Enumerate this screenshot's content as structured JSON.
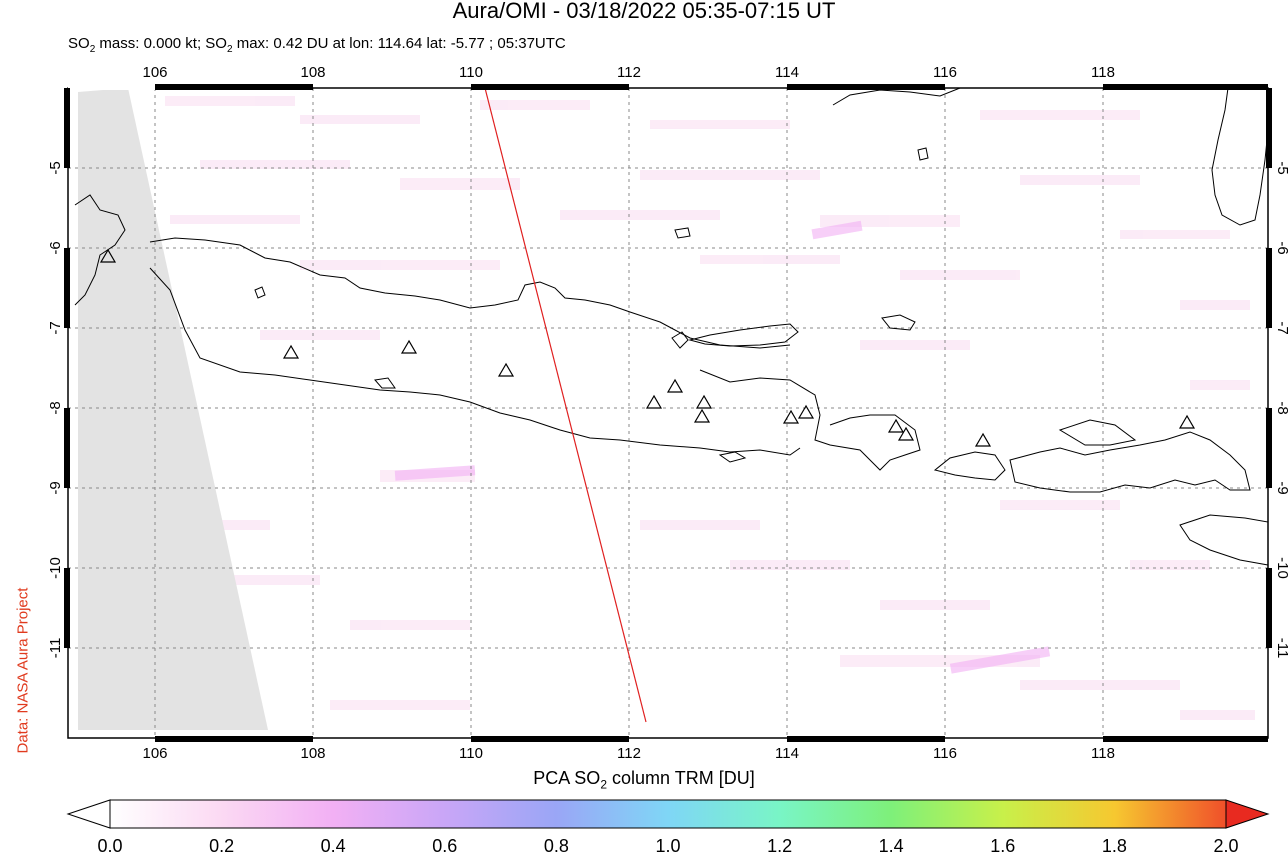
{
  "title": "Aura/OMI - 03/18/2022 05:35-07:15 UT",
  "subtitle": {
    "p1": "SO",
    "p1sub": "2",
    "p2": " mass: 0.000 kt; SO",
    "p2sub": "2",
    "p3": " max: 0.42 DU at lon: 114.64 lat: -5.77 ; 05:37UTC"
  },
  "credit": "Data: NASA Aura Project",
  "map": {
    "lon_ticks": [
      "106",
      "108",
      "110",
      "112",
      "114",
      "116",
      "118"
    ],
    "lat_ticks": [
      "-5",
      "-6",
      "-7",
      "-8",
      "-9",
      "-10",
      "-11"
    ],
    "lon_range": [
      104.9,
      120.0
    ],
    "lat_range": [
      -12.0,
      -4.0
    ],
    "volcano_marker": "triangle-outline",
    "orbit_track_color": "#e02020",
    "no_data_color": "#e3e3e3"
  },
  "colorbar": {
    "title": "PCA SO",
    "title_sub": "2",
    "title_rest": " column TRM [DU]",
    "labels": [
      "0.0",
      "0.2",
      "0.4",
      "0.6",
      "0.8",
      "1.0",
      "1.2",
      "1.4",
      "1.6",
      "1.8",
      "2.0"
    ],
    "colors": [
      "#ffffff",
      "#fbd9f3",
      "#f2b0f4",
      "#c9a6f7",
      "#9aa6f6",
      "#7fd6f6",
      "#79f5c6",
      "#7ef07a",
      "#c8f04a",
      "#f6c830",
      "#f0502a",
      "#e82a20"
    ]
  }
}
